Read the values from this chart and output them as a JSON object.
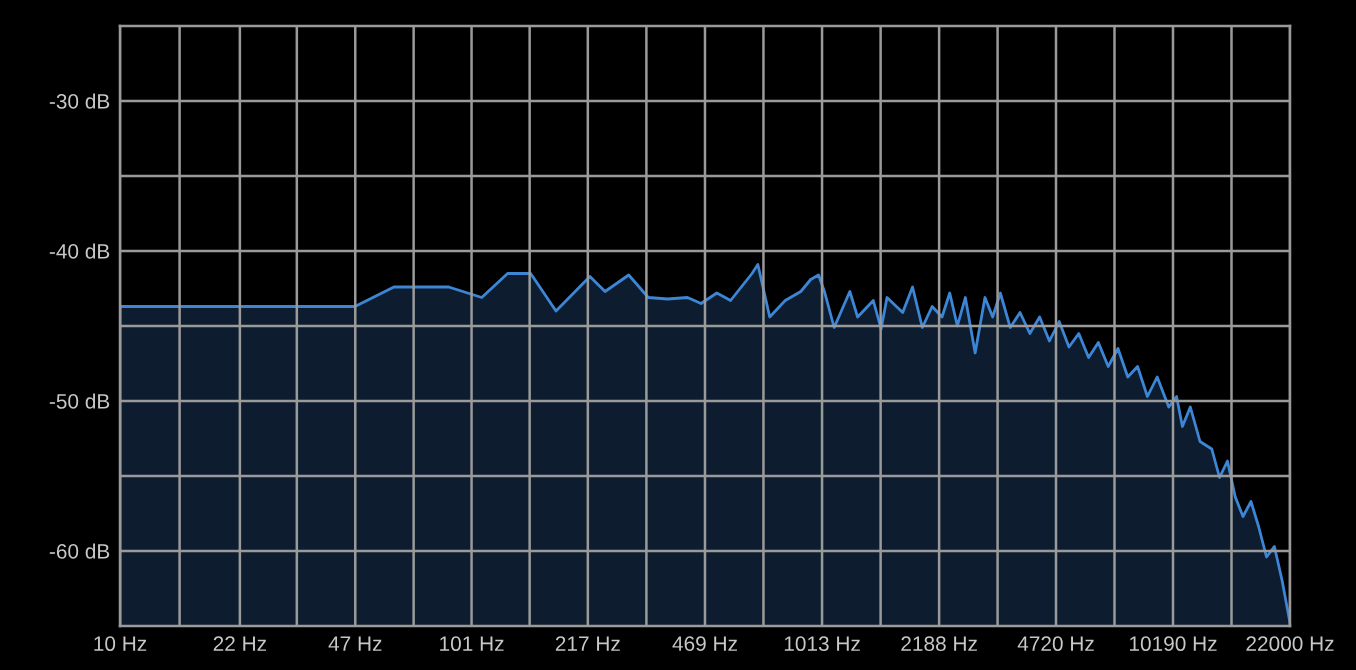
{
  "chart_data": {
    "type": "area",
    "x": [
      10,
      21.6,
      31.9,
      46.9,
      60.6,
      86.9,
      108,
      128,
      149,
      176,
      220,
      243,
      284,
      323,
      367,
      418,
      457,
      507,
      555,
      639,
      664,
      718,
      795,
      881,
      940,
      990,
      1029,
      1097,
      1216,
      1280,
      1419,
      1494,
      1553,
      1722,
      1837,
      1959,
      2090,
      2230,
      2346,
      2467,
      2600,
      2773,
      2958,
      3112,
      3273,
      3493,
      3726,
      3974,
      4238,
      4520,
      4820,
      5140,
      5483,
      5848,
      6237,
      6653,
      7096,
      7568,
      8072,
      8610,
      9183,
      9908,
      10430,
      10840,
      11420,
      12170,
      13150,
      13840,
      14580,
      15350,
      16150,
      17020,
      17910,
      18850,
      19850,
      20900,
      22000
    ],
    "series": [
      {
        "color": "#3d86d6",
        "values": [
          -43.7,
          -43.7,
          -43.7,
          -43.7,
          -42.4,
          -42.4,
          -43.1,
          -41.5,
          -41.5,
          -44,
          -41.7,
          -42.7,
          -41.6,
          -43.1,
          -43.2,
          -43.1,
          -43.5,
          -42.8,
          -43.3,
          -41.5,
          -40.9,
          -44.4,
          -43.3,
          -42.7,
          -41.9,
          -41.6,
          -42.7,
          -45.1,
          -42.7,
          -44.4,
          -43.3,
          -45.2,
          -43.1,
          -44.1,
          -42.4,
          -45.1,
          -43.7,
          -44.4,
          -42.8,
          -45,
          -43.1,
          -46.8,
          -43.1,
          -44.4,
          -42.8,
          -45.1,
          -44.1,
          -45.5,
          -44.4,
          -46,
          -44.7,
          -46.4,
          -45.5,
          -47.1,
          -46.1,
          -47.7,
          -46.5,
          -48.4,
          -47.7,
          -49.7,
          -48.4,
          -50.4,
          -49.7,
          -51.7,
          -50.4,
          -52.7,
          -53.2,
          -55.1,
          -54,
          -56.4,
          -57.7,
          -56.7,
          -58.4,
          -60.4,
          -59.7,
          -62,
          -64.8
        ]
      }
    ],
    "log": "x",
    "xlim": [
      10,
      22000
    ],
    "xticks": [
      {
        "value": 10,
        "label": "10 Hz"
      },
      {
        "value": 14.8,
        "label": null
      },
      {
        "value": 22,
        "label": "22 Hz"
      },
      {
        "value": 32,
        "label": null
      },
      {
        "value": 47,
        "label": "47 Hz"
      },
      {
        "value": 69,
        "label": null
      },
      {
        "value": 101,
        "label": "101 Hz"
      },
      {
        "value": 148,
        "label": null
      },
      {
        "value": 217,
        "label": "217 Hz"
      },
      {
        "value": 319,
        "label": null
      },
      {
        "value": 469,
        "label": "469 Hz"
      },
      {
        "value": 689,
        "label": null
      },
      {
        "value": 1013,
        "label": "1013 Hz"
      },
      {
        "value": 1489,
        "label": null
      },
      {
        "value": 2188,
        "label": "2188 Hz"
      },
      {
        "value": 3214,
        "label": null
      },
      {
        "value": 4720,
        "label": "4720 Hz"
      },
      {
        "value": 6935,
        "label": null
      },
      {
        "value": 10190,
        "label": "10190 Hz"
      },
      {
        "value": 14973,
        "label": null
      },
      {
        "value": 22000,
        "label": "22000 Hz"
      }
    ],
    "ylim": [
      -65,
      -25
    ],
    "yticks": [
      {
        "value": -60,
        "label": "-60 dB"
      },
      {
        "value": -55,
        "label": null
      },
      {
        "value": -50,
        "label": "-50 dB"
      },
      {
        "value": -45,
        "label": null
      },
      {
        "value": -40,
        "label": "-40 dB"
      },
      {
        "value": -35,
        "label": null
      },
      {
        "value": -30,
        "label": "-30 dB"
      }
    ],
    "grid": true
  }
}
